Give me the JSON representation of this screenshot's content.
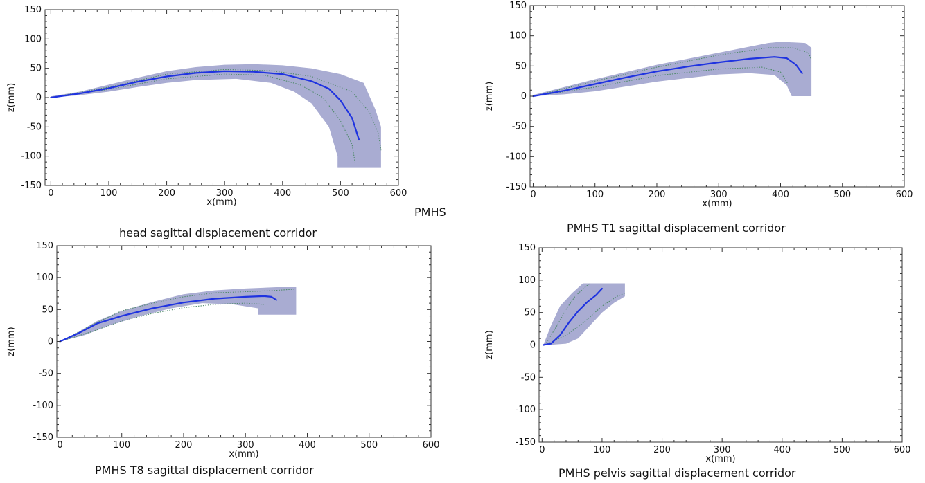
{
  "extra_label": "PMHS",
  "colors": {
    "corridor": "#a9acd2",
    "mean": "#1f33e0",
    "dotted": "#4f8a6a"
  },
  "chart_data": [
    {
      "type": "line",
      "caption": "head sagittal displacement corridor",
      "xlabel": "x(mm)",
      "ylabel": "z(mm)",
      "xlim": [
        -10,
        600
      ],
      "ylim": [
        -150,
        150
      ],
      "xticks": [
        0,
        100,
        200,
        300,
        400,
        500,
        600
      ],
      "yticks": [
        150,
        100,
        50,
        0,
        -50,
        -100,
        -150
      ],
      "corridor": [
        [
          0,
          2
        ],
        [
          50,
          10
        ],
        [
          100,
          22
        ],
        [
          150,
          34
        ],
        [
          200,
          45
        ],
        [
          250,
          52
        ],
        [
          300,
          56
        ],
        [
          350,
          57
        ],
        [
          400,
          55
        ],
        [
          450,
          50
        ],
        [
          500,
          40
        ],
        [
          540,
          25
        ],
        [
          560,
          -20
        ],
        [
          570,
          -50
        ],
        [
          570,
          -120
        ],
        [
          495,
          -120
        ],
        [
          495,
          -100
        ],
        [
          480,
          -50
        ],
        [
          450,
          -10
        ],
        [
          420,
          10
        ],
        [
          380,
          25
        ],
        [
          320,
          32
        ],
        [
          250,
          30
        ],
        [
          200,
          25
        ],
        [
          150,
          18
        ],
        [
          100,
          10
        ],
        [
          50,
          4
        ],
        [
          0,
          0
        ]
      ],
      "mean": [
        [
          0,
          0
        ],
        [
          50,
          7
        ],
        [
          100,
          16
        ],
        [
          150,
          27
        ],
        [
          200,
          36
        ],
        [
          250,
          42
        ],
        [
          300,
          45
        ],
        [
          350,
          44
        ],
        [
          400,
          40
        ],
        [
          450,
          28
        ],
        [
          480,
          15
        ],
        [
          500,
          -5
        ],
        [
          520,
          -35
        ],
        [
          532,
          -72
        ]
      ],
      "dotted": [
        [
          [
            0,
            0
          ],
          [
            100,
            18
          ],
          [
            200,
            40
          ],
          [
            300,
            48
          ],
          [
            380,
            46
          ],
          [
            450,
            36
          ],
          [
            520,
            10
          ],
          [
            550,
            -25
          ],
          [
            565,
            -60
          ],
          [
            570,
            -90
          ]
        ],
        [
          [
            0,
            0
          ],
          [
            100,
            14
          ],
          [
            200,
            32
          ],
          [
            300,
            40
          ],
          [
            370,
            38
          ],
          [
            430,
            22
          ],
          [
            470,
            0
          ],
          [
            500,
            -40
          ],
          [
            520,
            -80
          ],
          [
            525,
            -110
          ]
        ]
      ]
    },
    {
      "type": "line",
      "caption": "PMHS T1 sagittal displacement corridor",
      "xlabel": "x(mm)",
      "ylabel": "z(mm)",
      "xlim": [
        -5,
        600
      ],
      "ylim": [
        -150,
        150
      ],
      "xticks": [
        0,
        100,
        200,
        300,
        400,
        500,
        600
      ],
      "yticks": [
        150,
        100,
        50,
        0,
        -50,
        -100,
        -150
      ],
      "corridor": [
        [
          0,
          2
        ],
        [
          50,
          15
        ],
        [
          100,
          28
        ],
        [
          150,
          40
        ],
        [
          200,
          52
        ],
        [
          250,
          62
        ],
        [
          300,
          72
        ],
        [
          350,
          82
        ],
        [
          380,
          88
        ],
        [
          400,
          90
        ],
        [
          440,
          88
        ],
        [
          450,
          80
        ],
        [
          450,
          0
        ],
        [
          418,
          0
        ],
        [
          410,
          18
        ],
        [
          390,
          35
        ],
        [
          350,
          38
        ],
        [
          300,
          36
        ],
        [
          250,
          30
        ],
        [
          200,
          24
        ],
        [
          150,
          16
        ],
        [
          100,
          8
        ],
        [
          50,
          3
        ],
        [
          0,
          0
        ]
      ],
      "mean": [
        [
          0,
          0
        ],
        [
          50,
          9
        ],
        [
          100,
          20
        ],
        [
          150,
          31
        ],
        [
          200,
          41
        ],
        [
          250,
          49
        ],
        [
          300,
          56
        ],
        [
          350,
          62
        ],
        [
          390,
          65
        ],
        [
          410,
          63
        ],
        [
          425,
          52
        ],
        [
          435,
          38
        ]
      ],
      "dotted": [
        [
          [
            0,
            0
          ],
          [
            100,
            25
          ],
          [
            200,
            48
          ],
          [
            300,
            68
          ],
          [
            380,
            80
          ],
          [
            420,
            80
          ],
          [
            445,
            72
          ],
          [
            450,
            60
          ]
        ],
        [
          [
            0,
            0
          ],
          [
            100,
            15
          ],
          [
            200,
            34
          ],
          [
            300,
            45
          ],
          [
            370,
            48
          ],
          [
            400,
            40
          ],
          [
            412,
            20
          ]
        ]
      ]
    },
    {
      "type": "line",
      "caption": "PMHS T8 sagittal displacement corridor",
      "xlabel": "x(mm)",
      "ylabel": "z(mm)",
      "xlim": [
        -5,
        600
      ],
      "ylim": [
        -150,
        150
      ],
      "xticks": [
        0,
        100,
        200,
        300,
        400,
        500,
        600
      ],
      "yticks": [
        150,
        100,
        50,
        0,
        -50,
        -100,
        -150
      ],
      "corridor": [
        [
          0,
          0
        ],
        [
          30,
          15
        ],
        [
          60,
          32
        ],
        [
          100,
          48
        ],
        [
          150,
          62
        ],
        [
          200,
          74
        ],
        [
          250,
          80
        ],
        [
          300,
          83
        ],
        [
          350,
          85
        ],
        [
          382,
          85
        ],
        [
          382,
          42
        ],
        [
          320,
          42
        ],
        [
          320,
          52
        ],
        [
          280,
          58
        ],
        [
          230,
          60
        ],
        [
          180,
          52
        ],
        [
          130,
          40
        ],
        [
          80,
          25
        ],
        [
          40,
          10
        ],
        [
          0,
          0
        ]
      ],
      "mean": [
        [
          0,
          0
        ],
        [
          30,
          13
        ],
        [
          60,
          28
        ],
        [
          100,
          40
        ],
        [
          150,
          52
        ],
        [
          200,
          61
        ],
        [
          250,
          67
        ],
        [
          300,
          70
        ],
        [
          330,
          71
        ],
        [
          342,
          70
        ],
        [
          350,
          65
        ]
      ],
      "dotted": [
        [
          [
            0,
            0
          ],
          [
            50,
            25
          ],
          [
            100,
            48
          ],
          [
            150,
            60
          ],
          [
            200,
            70
          ],
          [
            250,
            76
          ],
          [
            300,
            78
          ],
          [
            350,
            80
          ],
          [
            380,
            82
          ]
        ],
        [
          [
            0,
            0
          ],
          [
            50,
            15
          ],
          [
            100,
            32
          ],
          [
            150,
            44
          ],
          [
            200,
            53
          ],
          [
            250,
            58
          ],
          [
            300,
            60
          ],
          [
            330,
            58
          ]
        ]
      ]
    },
    {
      "type": "line",
      "caption": "PMHS pelvis sagittal displacement corridor",
      "xlabel": "x(mm)",
      "ylabel": "z(mm)",
      "xlim": [
        -5,
        600
      ],
      "ylim": [
        -150,
        150
      ],
      "xticks": [
        0,
        100,
        200,
        300,
        400,
        500,
        600
      ],
      "yticks": [
        150,
        100,
        50,
        0,
        -50,
        -100,
        -150
      ],
      "corridor": [
        [
          2,
          0
        ],
        [
          15,
          30
        ],
        [
          30,
          60
        ],
        [
          50,
          80
        ],
        [
          68,
          95
        ],
        [
          138,
          95
        ],
        [
          138,
          75
        ],
        [
          120,
          65
        ],
        [
          100,
          50
        ],
        [
          80,
          30
        ],
        [
          60,
          10
        ],
        [
          40,
          2
        ],
        [
          10,
          0
        ]
      ],
      "mean": [
        [
          2,
          0
        ],
        [
          15,
          2
        ],
        [
          30,
          15
        ],
        [
          45,
          35
        ],
        [
          60,
          52
        ],
        [
          75,
          66
        ],
        [
          90,
          77
        ],
        [
          100,
          87
        ]
      ],
      "dotted": [
        [
          [
            5,
            0
          ],
          [
            25,
            30
          ],
          [
            40,
            55
          ],
          [
            55,
            75
          ],
          [
            70,
            88
          ],
          [
            80,
            95
          ]
        ],
        [
          [
            5,
            0
          ],
          [
            40,
            15
          ],
          [
            70,
            35
          ],
          [
            100,
            60
          ],
          [
            125,
            75
          ],
          [
            138,
            80
          ]
        ]
      ]
    }
  ]
}
